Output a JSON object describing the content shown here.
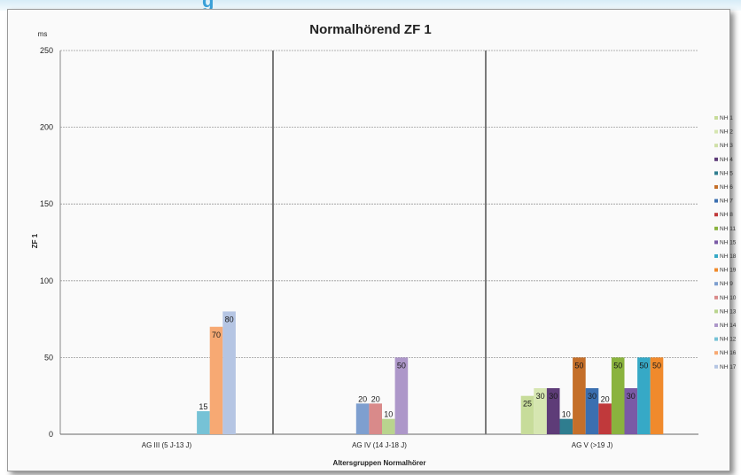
{
  "header_fragment": "g",
  "chart_data": {
    "type": "bar",
    "title": "Normalhörend ZF 1",
    "ylabel": "ZF 1",
    "yunit": "ms",
    "xlabel": "Altersgruppen Normalhörer",
    "ylim": [
      0,
      250
    ],
    "yticks": [
      0,
      50,
      100,
      150,
      200,
      250
    ],
    "grid": true,
    "legend_position": "right",
    "categories": [
      "AG III (5 J-13 J)",
      "AG IV (14 J-18 J)",
      "AG V (>19 J)"
    ],
    "series": [
      {
        "name": "NH 1",
        "color": "#c7dc9a",
        "values": [
          null,
          null,
          25
        ]
      },
      {
        "name": "NH 2",
        "color": "#d6e6b1",
        "values": [
          null,
          null,
          30
        ]
      },
      {
        "name": "NH 3",
        "color": "#cfe0a8",
        "values": [
          null,
          null,
          null
        ]
      },
      {
        "name": "NH 4",
        "color": "#5e3c78",
        "values": [
          null,
          null,
          30
        ]
      },
      {
        "name": "NH 5",
        "color": "#2f7d8f",
        "values": [
          null,
          null,
          10
        ]
      },
      {
        "name": "NH 6",
        "color": "#c46f2a",
        "values": [
          null,
          null,
          50
        ]
      },
      {
        "name": "NH 7",
        "color": "#3b6fb0",
        "values": [
          null,
          null,
          30
        ]
      },
      {
        "name": "NH 8",
        "color": "#c0393b",
        "values": [
          null,
          null,
          20
        ]
      },
      {
        "name": "NH 11",
        "color": "#8ab33e",
        "values": [
          null,
          null,
          50
        ]
      },
      {
        "name": "NH 15",
        "color": "#7a5aa6",
        "values": [
          null,
          null,
          30
        ]
      },
      {
        "name": "NH 18",
        "color": "#36a9c6",
        "values": [
          null,
          null,
          50
        ]
      },
      {
        "name": "NH 19",
        "color": "#f08a2c",
        "values": [
          null,
          null,
          50
        ]
      },
      {
        "name": "NH 9",
        "color": "#7e9fcf",
        "values": [
          null,
          20,
          null
        ]
      },
      {
        "name": "NH 10",
        "color": "#d98a8a",
        "values": [
          null,
          20,
          null
        ]
      },
      {
        "name": "NH 13",
        "color": "#b9d48e",
        "values": [
          null,
          10,
          null
        ]
      },
      {
        "name": "NH 14",
        "color": "#ad97c9",
        "values": [
          null,
          50,
          null
        ]
      },
      {
        "name": "NH 12",
        "color": "#76c2d6",
        "values": [
          15,
          null,
          null
        ]
      },
      {
        "name": "NH 16",
        "color": "#f7a973",
        "values": [
          70,
          null,
          null
        ]
      },
      {
        "name": "NH 17",
        "color": "#b5c5e3",
        "values": [
          80,
          null,
          null
        ]
      }
    ],
    "bar_labels": [
      {
        "series": "NH 12",
        "category": 0,
        "text": "15"
      },
      {
        "series": "NH 16",
        "category": 0,
        "text": "70"
      },
      {
        "series": "NH 17",
        "category": 0,
        "text": "80"
      },
      {
        "series": "NH 9",
        "category": 1,
        "text": "20"
      },
      {
        "series": "NH 10",
        "category": 1,
        "text": "20"
      },
      {
        "series": "NH 13",
        "category": 1,
        "text": "10"
      },
      {
        "series": "NH 14",
        "category": 1,
        "text": "50"
      },
      {
        "series": "NH 1",
        "category": 2,
        "text": "25"
      },
      {
        "series": "NH 2",
        "category": 2,
        "text": "30"
      },
      {
        "series": "NH 4",
        "category": 2,
        "text": "30"
      },
      {
        "series": "NH 5",
        "category": 2,
        "text": "10"
      },
      {
        "series": "NH 6",
        "category": 2,
        "text": "50"
      },
      {
        "series": "NH 7",
        "category": 2,
        "text": "30"
      },
      {
        "series": "NH 8",
        "category": 2,
        "text": "20"
      },
      {
        "series": "NH 11",
        "category": 2,
        "text": "50"
      },
      {
        "series": "NH 15",
        "category": 2,
        "text": "30"
      },
      {
        "series": "NH 18",
        "category": 2,
        "text": "50"
      },
      {
        "series": "NH 19",
        "category": 2,
        "text": "50"
      }
    ]
  }
}
